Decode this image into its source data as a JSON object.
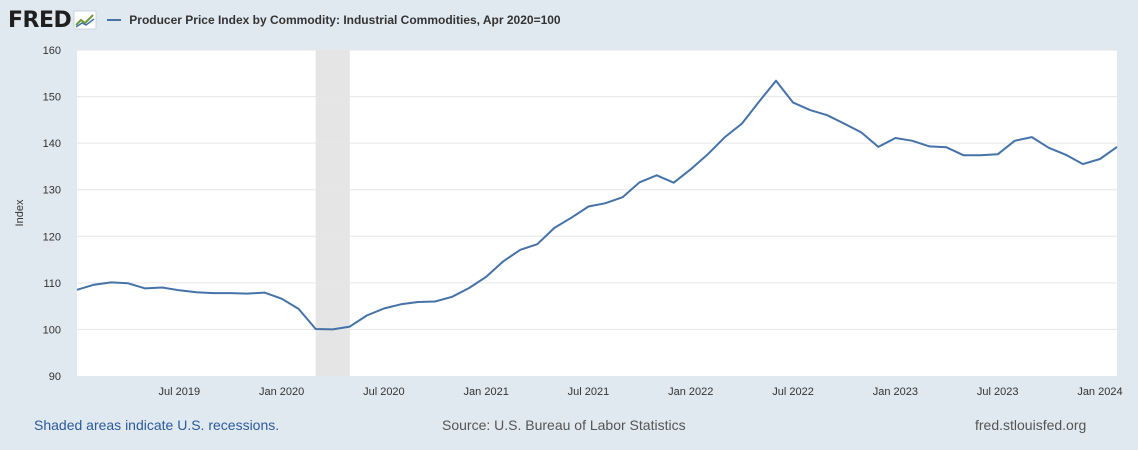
{
  "header": {
    "logo_text": "FRED",
    "series_title": "Producer Price Index by Commodity: Industrial Commodities, Apr 2020=100"
  },
  "footer": {
    "recession_note": "Shaded areas indicate U.S. recessions.",
    "source": "Source: U.S. Bureau of Labor Statistics",
    "url": "fred.stlouisfed.org"
  },
  "colors": {
    "line": "#4572a7",
    "plot_background": "#ffffff",
    "page_background": "#e1e9f0",
    "recession_band": "#e5e5e5",
    "grid": "#e6e6e6"
  },
  "chart_data": {
    "type": "line",
    "title": "Producer Price Index by Commodity: Industrial Commodities, Apr 2020=100",
    "ylabel": "Index",
    "xlabel": "",
    "ylim": [
      90,
      160
    ],
    "yticks": [
      90,
      100,
      110,
      120,
      130,
      140,
      150,
      160
    ],
    "xlim": [
      "2019-01",
      "2024-02"
    ],
    "xticks": [
      {
        "date": "2019-07",
        "label": "Jul 2019"
      },
      {
        "date": "2020-01",
        "label": "Jan 2020"
      },
      {
        "date": "2020-07",
        "label": "Jul 2020"
      },
      {
        "date": "2021-01",
        "label": "Jan 2021"
      },
      {
        "date": "2021-07",
        "label": "Jul 2021"
      },
      {
        "date": "2022-01",
        "label": "Jan 2022"
      },
      {
        "date": "2022-07",
        "label": "Jul 2022"
      },
      {
        "date": "2023-01",
        "label": "Jan 2023"
      },
      {
        "date": "2023-07",
        "label": "Jul 2023"
      },
      {
        "date": "2024-01",
        "label": "Jan 2024"
      }
    ],
    "grid": true,
    "recessions": [
      {
        "start": "2020-03",
        "end": "2020-05"
      }
    ],
    "series": [
      {
        "x": [
          "2019-01",
          "2019-02",
          "2019-03",
          "2019-04",
          "2019-05",
          "2019-06",
          "2019-07",
          "2019-08",
          "2019-09",
          "2019-10",
          "2019-11",
          "2019-12",
          "2020-01",
          "2020-02",
          "2020-03",
          "2020-04",
          "2020-05",
          "2020-06",
          "2020-07",
          "2020-08",
          "2020-09",
          "2020-10",
          "2020-11",
          "2020-12",
          "2021-01",
          "2021-02",
          "2021-03",
          "2021-04",
          "2021-05",
          "2021-06",
          "2021-07",
          "2021-08",
          "2021-09",
          "2021-10",
          "2021-11",
          "2021-12",
          "2022-01",
          "2022-02",
          "2022-03",
          "2022-04",
          "2022-05",
          "2022-06",
          "2022-07",
          "2022-08",
          "2022-09",
          "2022-10",
          "2022-11",
          "2022-12",
          "2023-01",
          "2023-02",
          "2023-03",
          "2023-04",
          "2023-05",
          "2023-06",
          "2023-07",
          "2023-08",
          "2023-09",
          "2023-10",
          "2023-11",
          "2023-12",
          "2024-01",
          "2024-02"
        ],
        "values": [
          108.5,
          109.6,
          110.1,
          109.9,
          108.8,
          109.0,
          108.4,
          108.0,
          107.8,
          107.8,
          107.7,
          107.9,
          106.6,
          104.4,
          100.1,
          100.0,
          100.6,
          103.0,
          104.5,
          105.4,
          105.9,
          106.0,
          107.0,
          108.9,
          111.3,
          114.6,
          117.1,
          118.3,
          121.8,
          124.0,
          126.4,
          127.1,
          128.4,
          131.6,
          133.1,
          131.5,
          134.4,
          137.6,
          141.3,
          144.2,
          148.9,
          153.4,
          148.7,
          147.1,
          146.0,
          144.2,
          142.3,
          139.2,
          141.1,
          140.5,
          139.3,
          139.1,
          137.4,
          137.4,
          137.6,
          140.5,
          141.3,
          139.0,
          137.5,
          135.5,
          136.6,
          139.2
        ]
      }
    ]
  }
}
